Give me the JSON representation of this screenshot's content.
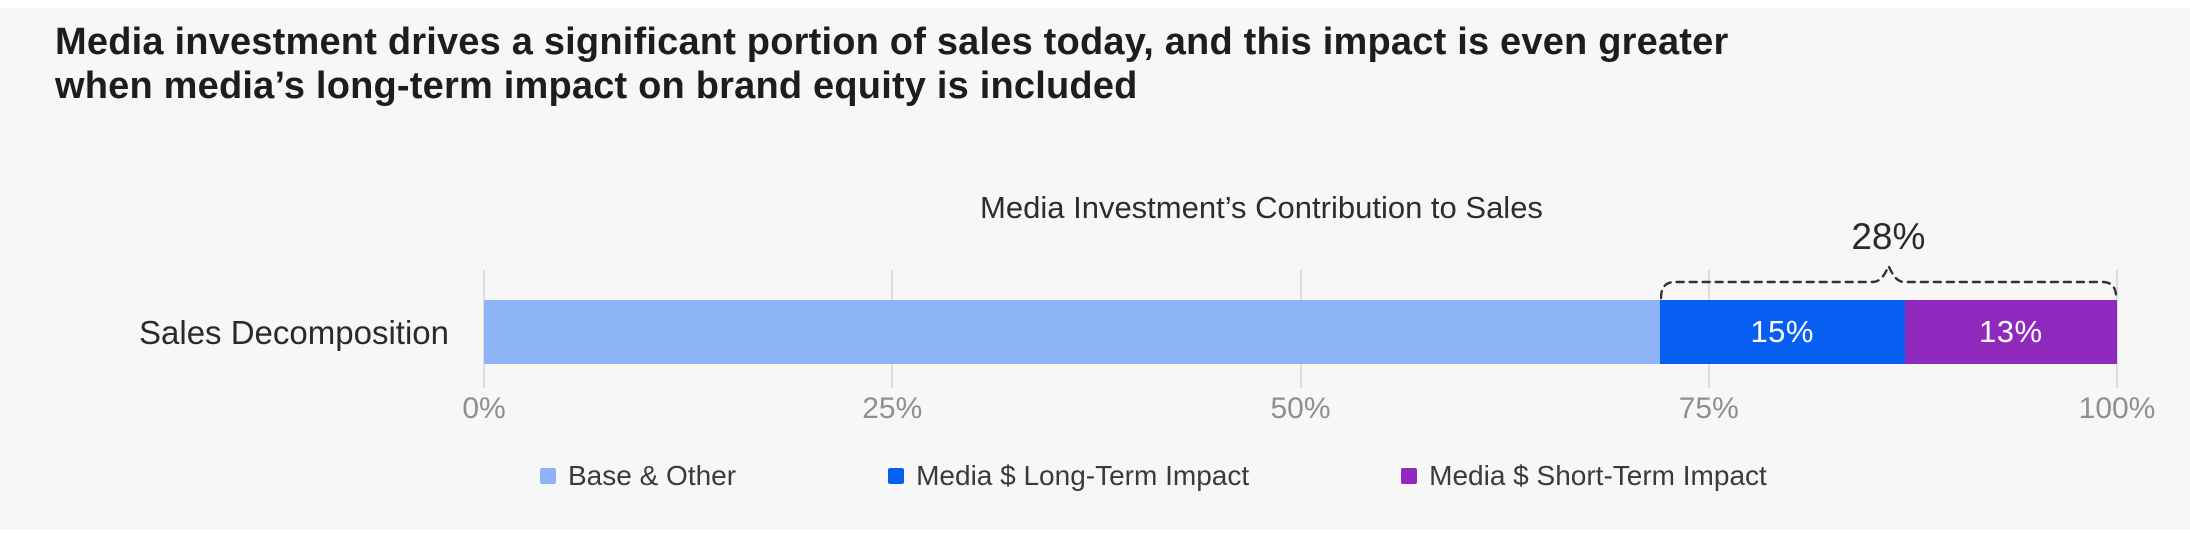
{
  "page": {
    "background": "#f7f7f7",
    "title_line1": "Media investment drives a significant portion of sales today, and this impact is even greater",
    "title_line2": "when media’s long-term impact on brand equity is included"
  },
  "chart_data": {
    "type": "bar",
    "orientation": "horizontal",
    "stacked": true,
    "title": "Media Investment’s Contribution to Sales",
    "row_label": "Sales Decomposition",
    "xlim": [
      0,
      100
    ],
    "grid": true,
    "x_ticks": [
      {
        "label": "0%",
        "value": 0
      },
      {
        "label": "25%",
        "value": 25
      },
      {
        "label": "50%",
        "value": 50
      },
      {
        "label": "75%",
        "value": 75
      },
      {
        "label": "100%",
        "value": 100
      }
    ],
    "series": [
      {
        "name": "Base & Other",
        "value": 72,
        "color": "#8DB4F6",
        "bar_label": ""
      },
      {
        "name": "Media $ Long-Term Impact",
        "value": 15,
        "color": "#075FF2",
        "bar_label": "15%"
      },
      {
        "name": "Media $ Short-Term Impact",
        "value": 13,
        "color": "#8F28BD",
        "bar_label": "13%"
      }
    ],
    "annotation": {
      "text": "28%",
      "spans_series": [
        "Media $ Long-Term Impact",
        "Media $ Short-Term Impact"
      ],
      "span_start_pct": 72,
      "span_end_pct": 100
    },
    "legend_position": "bottom",
    "colors": {
      "gridline": "#dcdcde",
      "axis_label": "#8f8f8f",
      "brace": "#333333"
    }
  }
}
